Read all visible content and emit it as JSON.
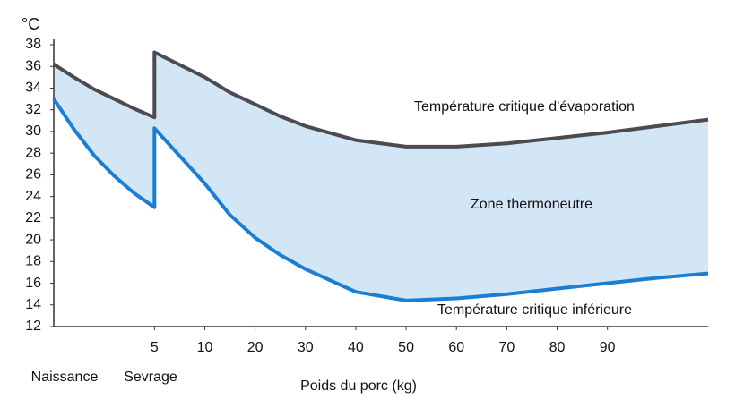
{
  "chart_data": {
    "type": "line",
    "y_unit": "°C",
    "x_label": "Poids du porc (kg)",
    "start_labels": [
      "Naissance",
      "Sevrage"
    ],
    "annotations": [
      "Température critique d'évaporation",
      "Zone thermoneutre",
      "Température critique inférieure"
    ],
    "zone_color": "#d3e6f6",
    "xlim": [
      0,
      110
    ],
    "xticks": [
      5,
      10,
      20,
      30,
      40,
      50,
      60,
      70,
      80,
      90
    ],
    "ylim": [
      12,
      38
    ],
    "yticks": [
      12,
      14,
      16,
      18,
      20,
      22,
      24,
      26,
      28,
      30,
      32,
      34,
      36,
      38
    ],
    "x": [
      0,
      1,
      2,
      3,
      4,
      5,
      5,
      10,
      15,
      20,
      25,
      30,
      40,
      50,
      60,
      70,
      80,
      90,
      100,
      110
    ],
    "series": [
      {
        "name": "Température critique d'évaporation",
        "color": "#4b4b50",
        "values": [
          36.2,
          35.0,
          33.9,
          33.0,
          32.1,
          31.3,
          37.3,
          35.0,
          33.6,
          32.5,
          31.4,
          30.5,
          29.2,
          28.6,
          28.6,
          28.9,
          29.4,
          29.9,
          30.5,
          31.1
        ]
      },
      {
        "name": "Température critique inférieure",
        "color": "#1a7fd4",
        "values": [
          33.0,
          30.2,
          27.8,
          25.9,
          24.3,
          23.0,
          30.3,
          25.2,
          22.3,
          20.2,
          18.6,
          17.3,
          15.2,
          14.4,
          14.6,
          15.0,
          15.5,
          16.0,
          16.5,
          16.9
        ]
      }
    ]
  }
}
